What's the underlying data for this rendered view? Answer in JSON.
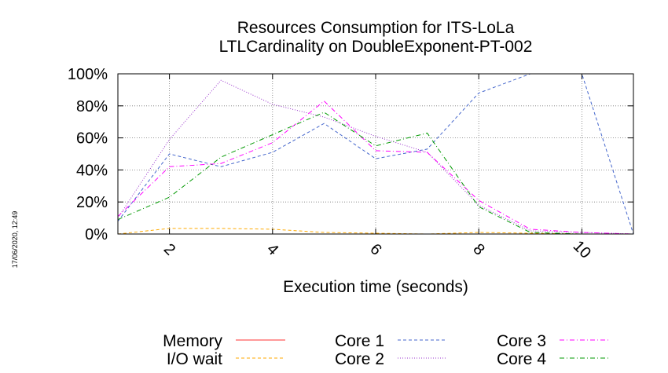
{
  "timestamp": "17/06/2020, 12:49",
  "chart_data": {
    "type": "line",
    "title": [
      "Resources Consumption for ITS-LoLa",
      "LTLCardinality on DoubleExponent-PT-002"
    ],
    "xlabel": "Execution time (seconds)",
    "ylabel": "",
    "xlim": [
      1,
      11
    ],
    "ylim": [
      0,
      100
    ],
    "x_ticks": [
      2,
      4,
      6,
      8,
      10
    ],
    "y_ticks": [
      0,
      20,
      40,
      60,
      80,
      100
    ],
    "y_tick_labels": [
      "0%",
      "20%",
      "40%",
      "60%",
      "80%",
      "100%"
    ],
    "grid": true,
    "legend_position": "bottom",
    "series": [
      {
        "name": "Memory",
        "color": "#ff3333",
        "dash": "solid",
        "x": [
          1,
          2,
          3,
          4,
          5,
          6,
          7,
          8,
          9,
          10,
          11
        ],
        "values": [
          0,
          0,
          0,
          0,
          0,
          0,
          0,
          0,
          0,
          0,
          0
        ]
      },
      {
        "name": "I/O wait",
        "color": "#ffaa00",
        "dash": "dashed",
        "x": [
          1,
          2,
          3,
          4,
          5,
          6,
          7,
          8,
          9,
          10,
          11
        ],
        "values": [
          0,
          3.5,
          3.5,
          3,
          1,
          0.5,
          0,
          1,
          0.5,
          0,
          0
        ]
      },
      {
        "name": "Core 1",
        "color": "#4466cc",
        "dash": "dashed",
        "x": [
          1,
          2,
          3,
          4,
          5,
          6,
          7,
          8,
          9,
          10,
          11
        ],
        "values": [
          8,
          50,
          42,
          51,
          69,
          47,
          53,
          88,
          100,
          100,
          0
        ]
      },
      {
        "name": "Core 2",
        "color": "#9933cc",
        "dash": "dotted",
        "x": [
          1,
          2,
          3,
          4,
          5,
          6,
          7,
          8,
          9,
          10,
          11
        ],
        "values": [
          10,
          59,
          96,
          81,
          73,
          61,
          51,
          18,
          2,
          1,
          0
        ]
      },
      {
        "name": "Core 3",
        "color": "#ff00ff",
        "dash": "dashdot",
        "x": [
          1,
          2,
          3,
          4,
          5,
          6,
          7,
          8,
          9,
          10,
          11
        ],
        "values": [
          11,
          42,
          44,
          57,
          83,
          52,
          51,
          21,
          3,
          1,
          0
        ]
      },
      {
        "name": "Core 4",
        "color": "#009900",
        "dash": "dashdot",
        "x": [
          1,
          2,
          3,
          4,
          5,
          6,
          7,
          8,
          9,
          10,
          11
        ],
        "values": [
          9,
          23,
          48,
          62,
          76,
          55,
          63,
          17,
          1,
          0,
          0
        ]
      }
    ]
  }
}
